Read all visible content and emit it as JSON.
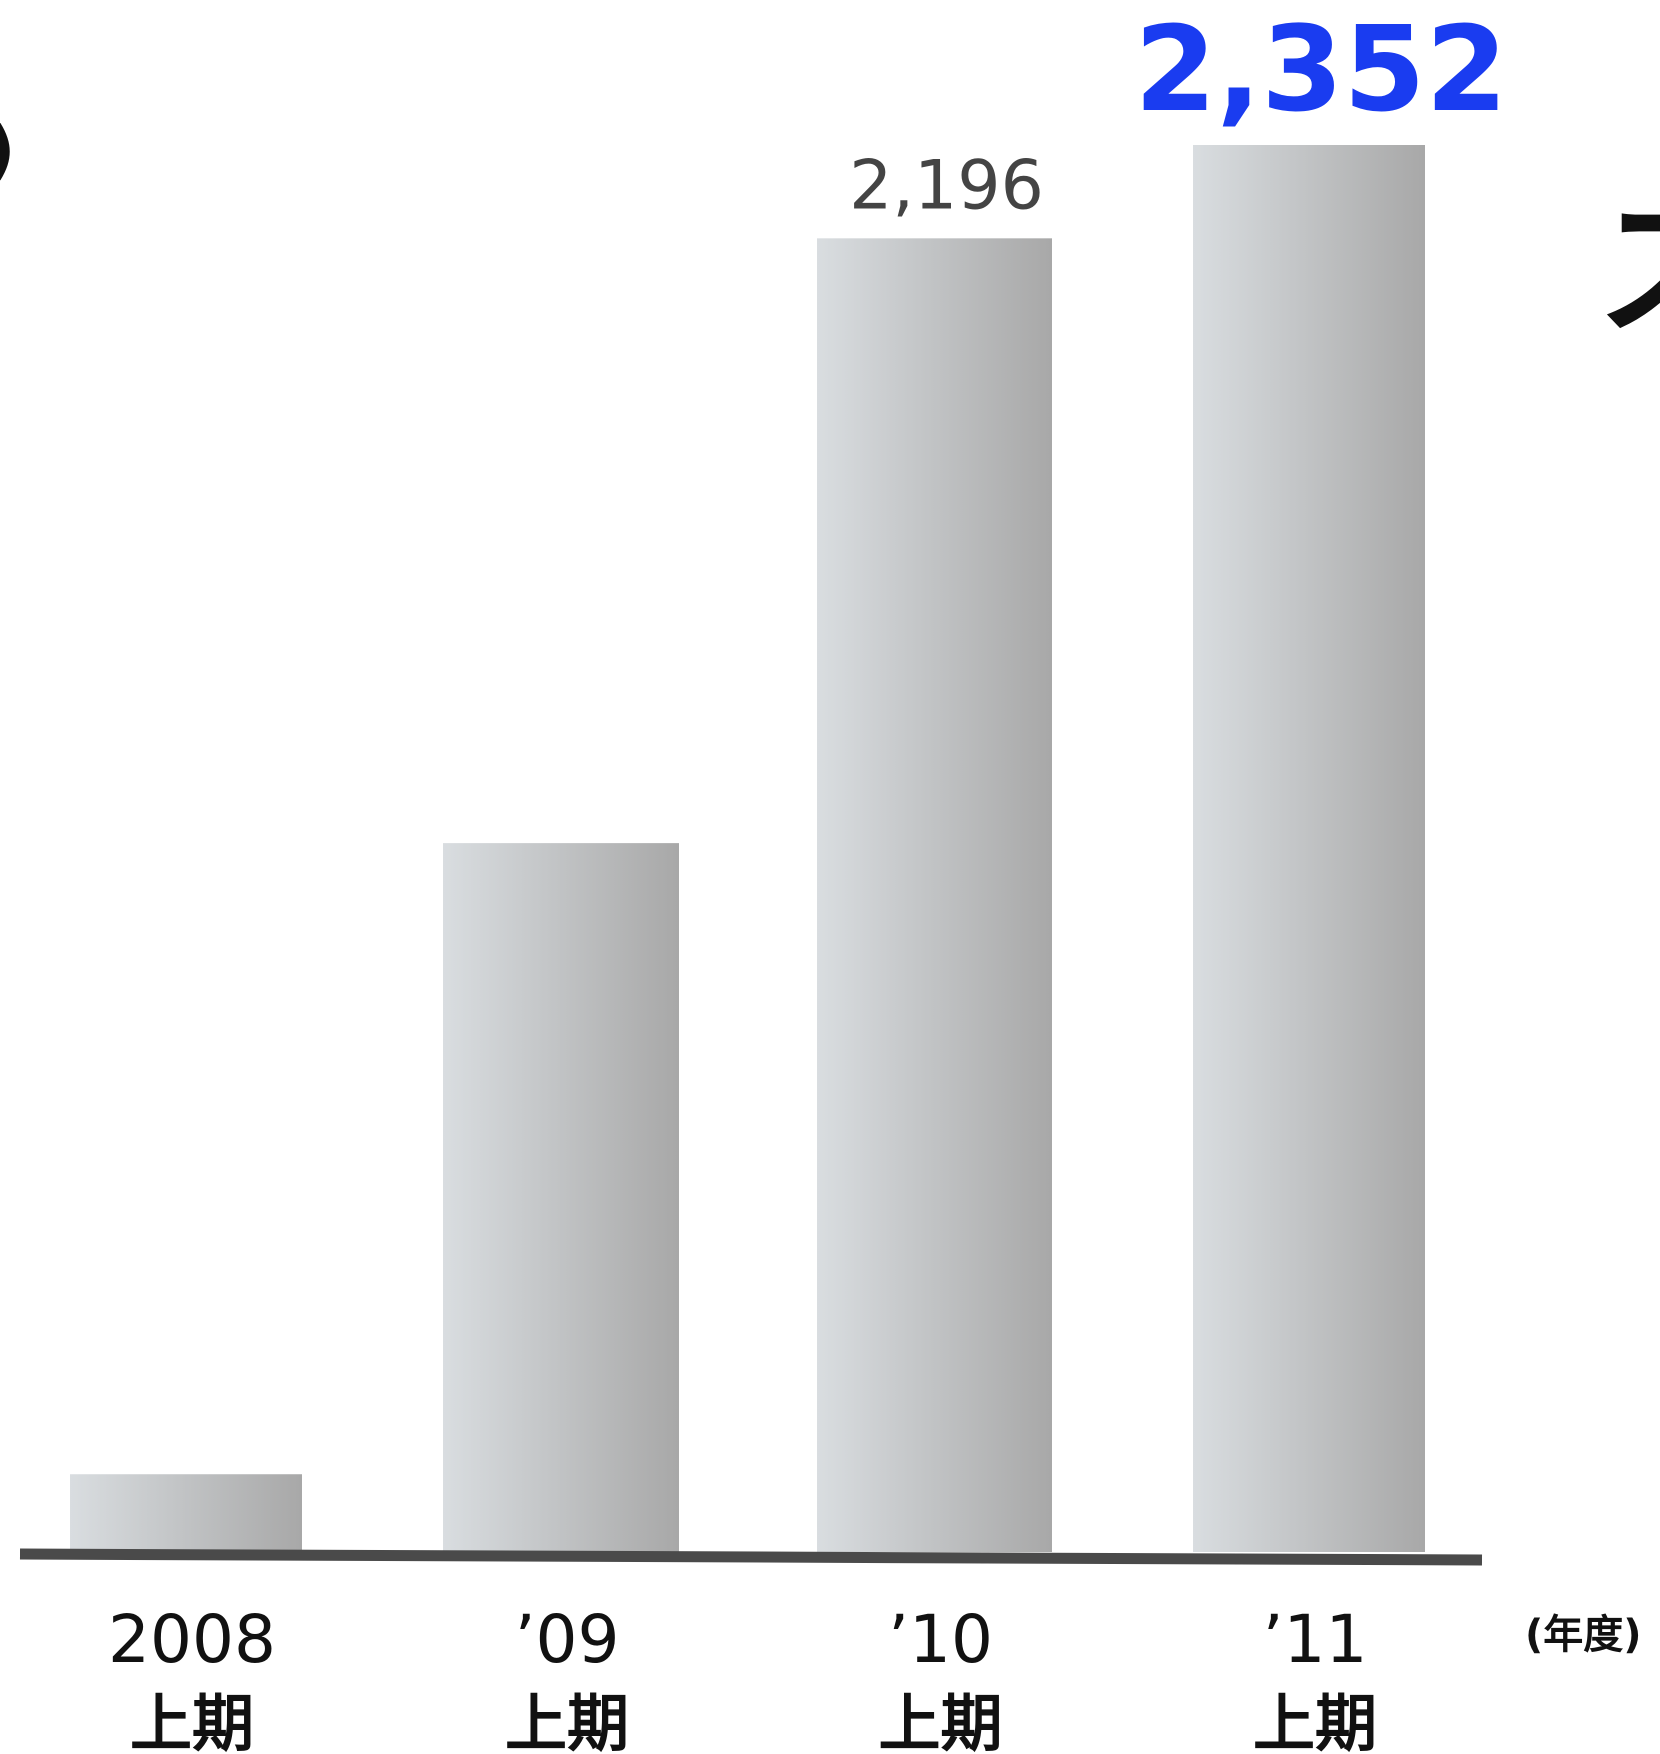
{
  "chart_data": {
    "type": "bar",
    "categories": [
      {
        "year": "2008",
        "period": "上期"
      },
      {
        "year": "’09",
        "period": "上期"
      },
      {
        "year": "’10",
        "period": "上期"
      },
      {
        "year": "’11",
        "period": "上期"
      }
    ],
    "values": [
      130,
      1185,
      2196,
      2352
    ],
    "data_labels": [
      "",
      "",
      "2,196",
      "2,352"
    ],
    "highlight_index": 3,
    "ylim": [
      0,
      2352
    ],
    "x_unit_label": "(年度)",
    "grid": false,
    "legend": "none",
    "colors": {
      "bar_light": "#d9dde0",
      "bar_dark": "#a8a8a8",
      "axis": "#4a4a4a",
      "highlight_label": "#1a3cf0",
      "normal_label": "#444444"
    }
  },
  "fragments": {
    "left_paren": ")",
    "right_glyph": "ス"
  }
}
